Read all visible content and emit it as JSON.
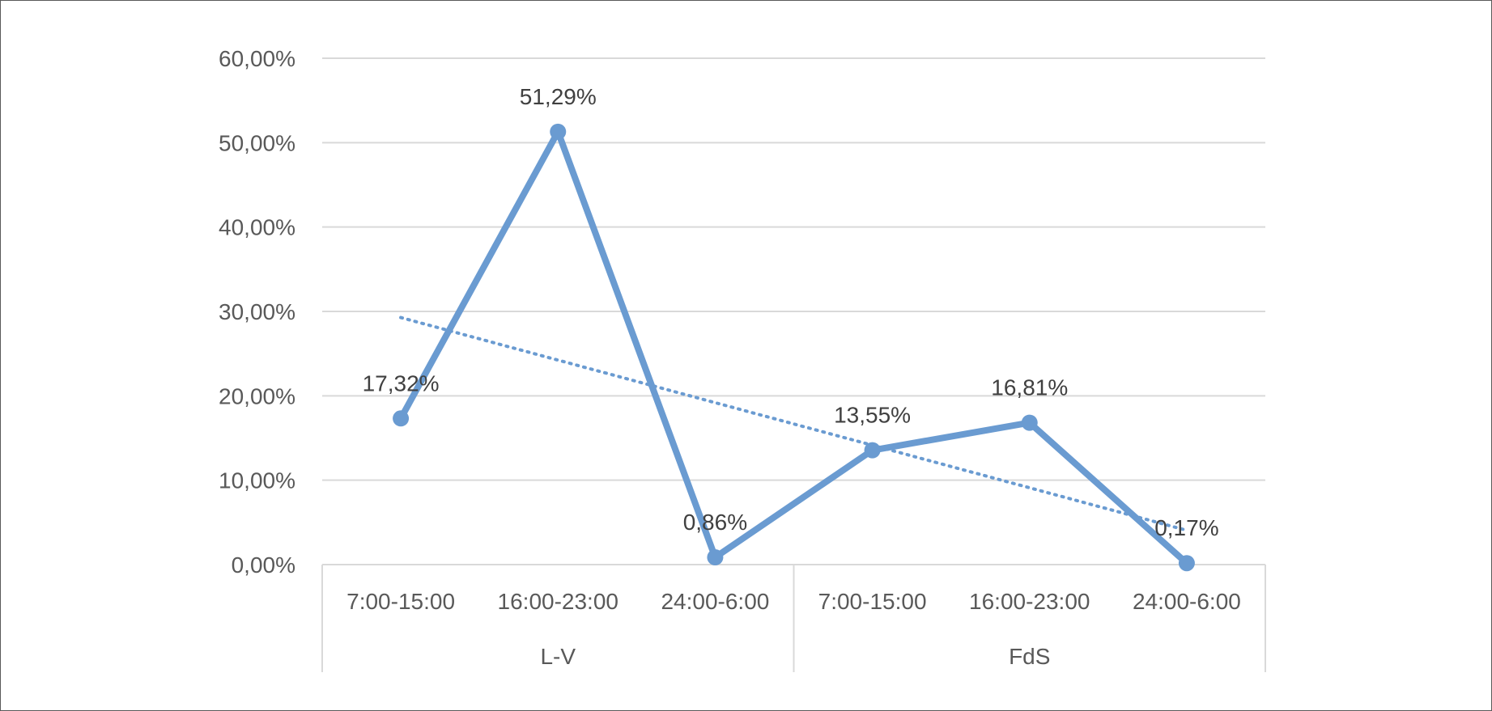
{
  "chart_data": {
    "type": "line",
    "title": "",
    "xlabel": "",
    "ylabel": "",
    "ylim": [
      0,
      0.6
    ],
    "y_ticks": [
      "0,00%",
      "10,00%",
      "20,00%",
      "30,00%",
      "40,00%",
      "50,00%",
      "60,00%"
    ],
    "grid": true,
    "legend": "none",
    "groups": [
      {
        "label": "L-V",
        "categories": [
          "7:00-15:00",
          "16:00-23:00",
          "24:00-6:00"
        ]
      },
      {
        "label": "FdS",
        "categories": [
          "7:00-15:00",
          "16:00-23:00",
          "24:00-6:00"
        ]
      }
    ],
    "categories": [
      "7:00-15:00",
      "16:00-23:00",
      "24:00-6:00",
      "7:00-15:00",
      "16:00-23:00",
      "24:00-6:00"
    ],
    "series": [
      {
        "values": [
          0.1732,
          0.5129,
          0.0086,
          0.1355,
          0.1681,
          0.0017
        ],
        "data_labels": [
          "17,32%",
          "51,29%",
          "0,86%",
          "13,55%",
          "16,81%",
          "0,17%"
        ],
        "color": "#6a9bd1"
      }
    ],
    "trendline": {
      "type": "linear",
      "style": "dotted",
      "color": "#6a9bd1"
    }
  }
}
